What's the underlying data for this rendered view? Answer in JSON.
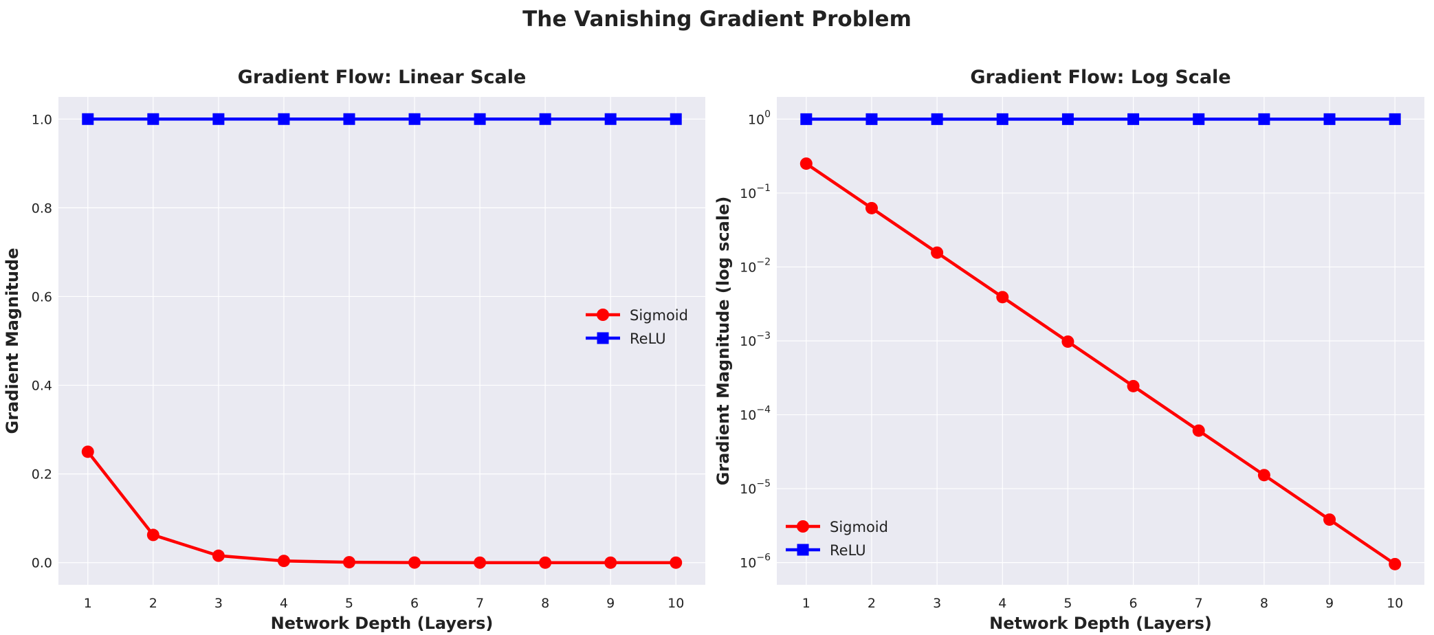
{
  "figure": {
    "title": "The Vanishing Gradient Problem"
  },
  "colors": {
    "sigmoid": "#ff0000",
    "relu": "#0000ff",
    "plot_background": "#eaeaf2",
    "grid": "#ffffff"
  },
  "chart_data": [
    {
      "type": "line",
      "title": "Gradient Flow: Linear Scale",
      "xlabel": "Network Depth (Layers)",
      "ylabel": "Gradient Magnitude",
      "yscale": "linear",
      "xlim": [
        0.55,
        10.45
      ],
      "ylim": [
        -0.05,
        1.05
      ],
      "x": [
        1,
        2,
        3,
        4,
        5,
        6,
        7,
        8,
        9,
        10
      ],
      "xticks": [
        1,
        2,
        3,
        4,
        5,
        6,
        7,
        8,
        9,
        10
      ],
      "xtick_labels": [
        "1",
        "2",
        "3",
        "4",
        "5",
        "6",
        "7",
        "8",
        "9",
        "10"
      ],
      "yticks": [
        0.0,
        0.2,
        0.4,
        0.6,
        0.8,
        1.0
      ],
      "ytick_labels": [
        "0.0",
        "0.2",
        "0.4",
        "0.6",
        "0.8",
        "1.0"
      ],
      "grid": true,
      "legend": "center-right",
      "series": [
        {
          "name": "Sigmoid",
          "color": "#ff0000",
          "marker": "circle",
          "values": [
            0.25,
            0.0625,
            0.015625,
            0.00390625,
            0.0009765625,
            0.000244140625,
            6.103515625e-05,
            1.52587890625e-05,
            3.814697265625e-06,
            9.5367431640625e-07
          ]
        },
        {
          "name": "ReLU",
          "color": "#0000ff",
          "marker": "square",
          "values": [
            1,
            1,
            1,
            1,
            1,
            1,
            1,
            1,
            1,
            1
          ]
        }
      ]
    },
    {
      "type": "line",
      "title": "Gradient Flow: Log Scale",
      "xlabel": "Network Depth (Layers)",
      "ylabel": "Gradient Magnitude (log scale)",
      "yscale": "log",
      "xlim": [
        0.55,
        10.45
      ],
      "ylim": [
        5e-07,
        2
      ],
      "x": [
        1,
        2,
        3,
        4,
        5,
        6,
        7,
        8,
        9,
        10
      ],
      "xticks": [
        1,
        2,
        3,
        4,
        5,
        6,
        7,
        8,
        9,
        10
      ],
      "xtick_labels": [
        "1",
        "2",
        "3",
        "4",
        "5",
        "6",
        "7",
        "8",
        "9",
        "10"
      ],
      "yticks": [
        1e-06,
        1e-05,
        0.0001,
        0.001,
        0.01,
        0.1,
        1
      ],
      "ytick_labels": [
        {
          "base": "10",
          "exp": "−6"
        },
        {
          "base": "10",
          "exp": "−5"
        },
        {
          "base": "10",
          "exp": "−4"
        },
        {
          "base": "10",
          "exp": "−3"
        },
        {
          "base": "10",
          "exp": "−2"
        },
        {
          "base": "10",
          "exp": "−1"
        },
        {
          "base": "10",
          "exp": "0"
        }
      ],
      "grid": true,
      "legend": "lower-left",
      "series": [
        {
          "name": "Sigmoid",
          "color": "#ff0000",
          "marker": "circle",
          "values": [
            0.25,
            0.0625,
            0.015625,
            0.00390625,
            0.0009765625,
            0.000244140625,
            6.103515625e-05,
            1.52587890625e-05,
            3.814697265625e-06,
            9.5367431640625e-07
          ]
        },
        {
          "name": "ReLU",
          "color": "#0000ff",
          "marker": "square",
          "values": [
            1,
            1,
            1,
            1,
            1,
            1,
            1,
            1,
            1,
            1
          ]
        }
      ]
    }
  ]
}
